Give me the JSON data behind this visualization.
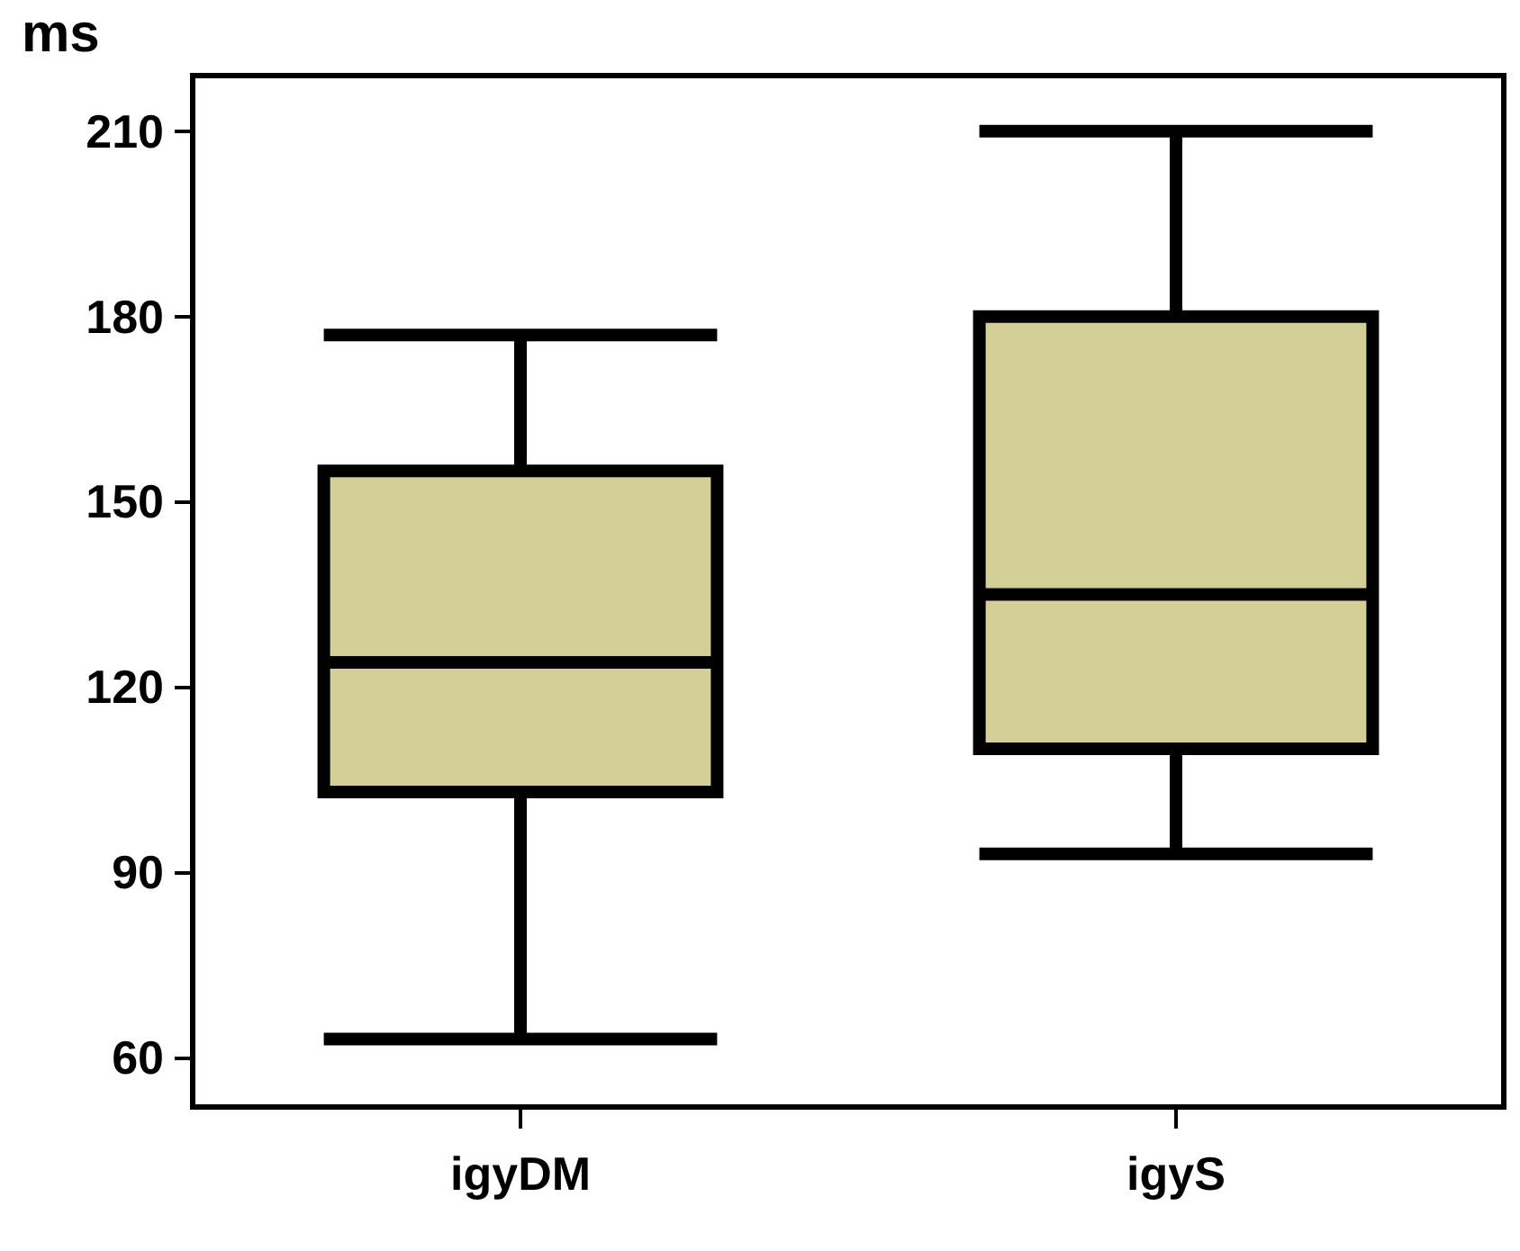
{
  "chart_data": {
    "type": "box",
    "ylabel": "ms",
    "categories": [
      "igyDM",
      "igyS"
    ],
    "boxes": [
      {
        "low": 63,
        "q1": 103,
        "median": 124,
        "q3": 155,
        "high": 177
      },
      {
        "low": 93,
        "q1": 110,
        "median": 135,
        "q3": 180,
        "high": 210
      }
    ],
    "color": "#d4cf96",
    "ylim": [
      52,
      219
    ],
    "yticks": [
      60,
      90,
      120,
      150,
      180,
      210
    ],
    "grid": false
  }
}
